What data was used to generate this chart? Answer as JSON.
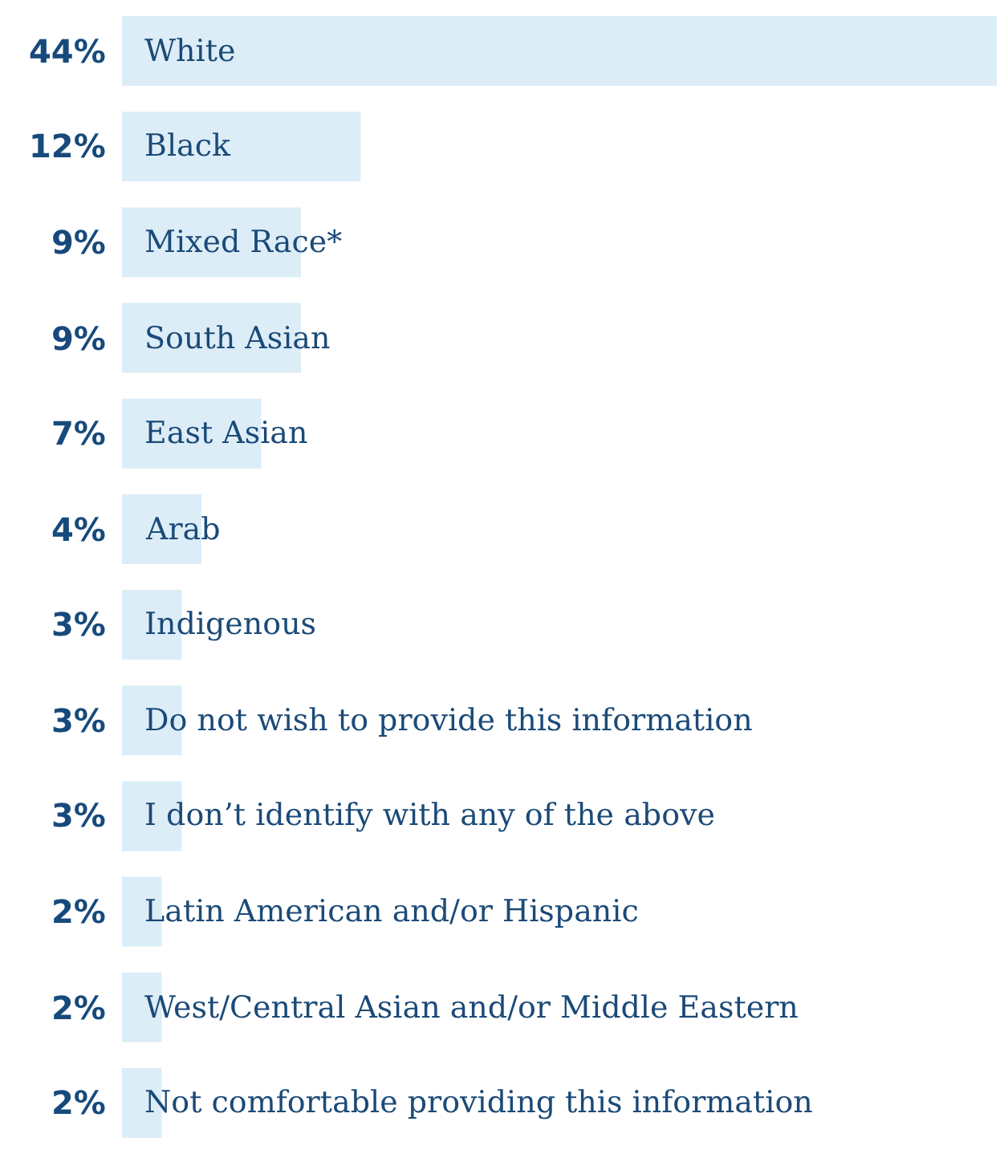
{
  "chart_data": {
    "type": "bar",
    "orientation": "horizontal",
    "categories": [
      "White",
      "Black",
      "Mixed Race*",
      "South Asian",
      "East Asian",
      "Arab",
      "Indigenous",
      "Do not wish to provide this information",
      "I don’t identify with any of the above",
      "Latin American and/or Hispanic",
      "West/Central Asian and/or Middle Eastern",
      "Not comfortable providing this information"
    ],
    "values": [
      44,
      12,
      9,
      9,
      7,
      4,
      3,
      3,
      3,
      2,
      2,
      2
    ],
    "value_labels": [
      "44%",
      "12%",
      "9%",
      "9%",
      "7%",
      "4%",
      "3%",
      "3%",
      "3%",
      "2%",
      "2%",
      "2%"
    ],
    "color": "#dcedf7"
  }
}
